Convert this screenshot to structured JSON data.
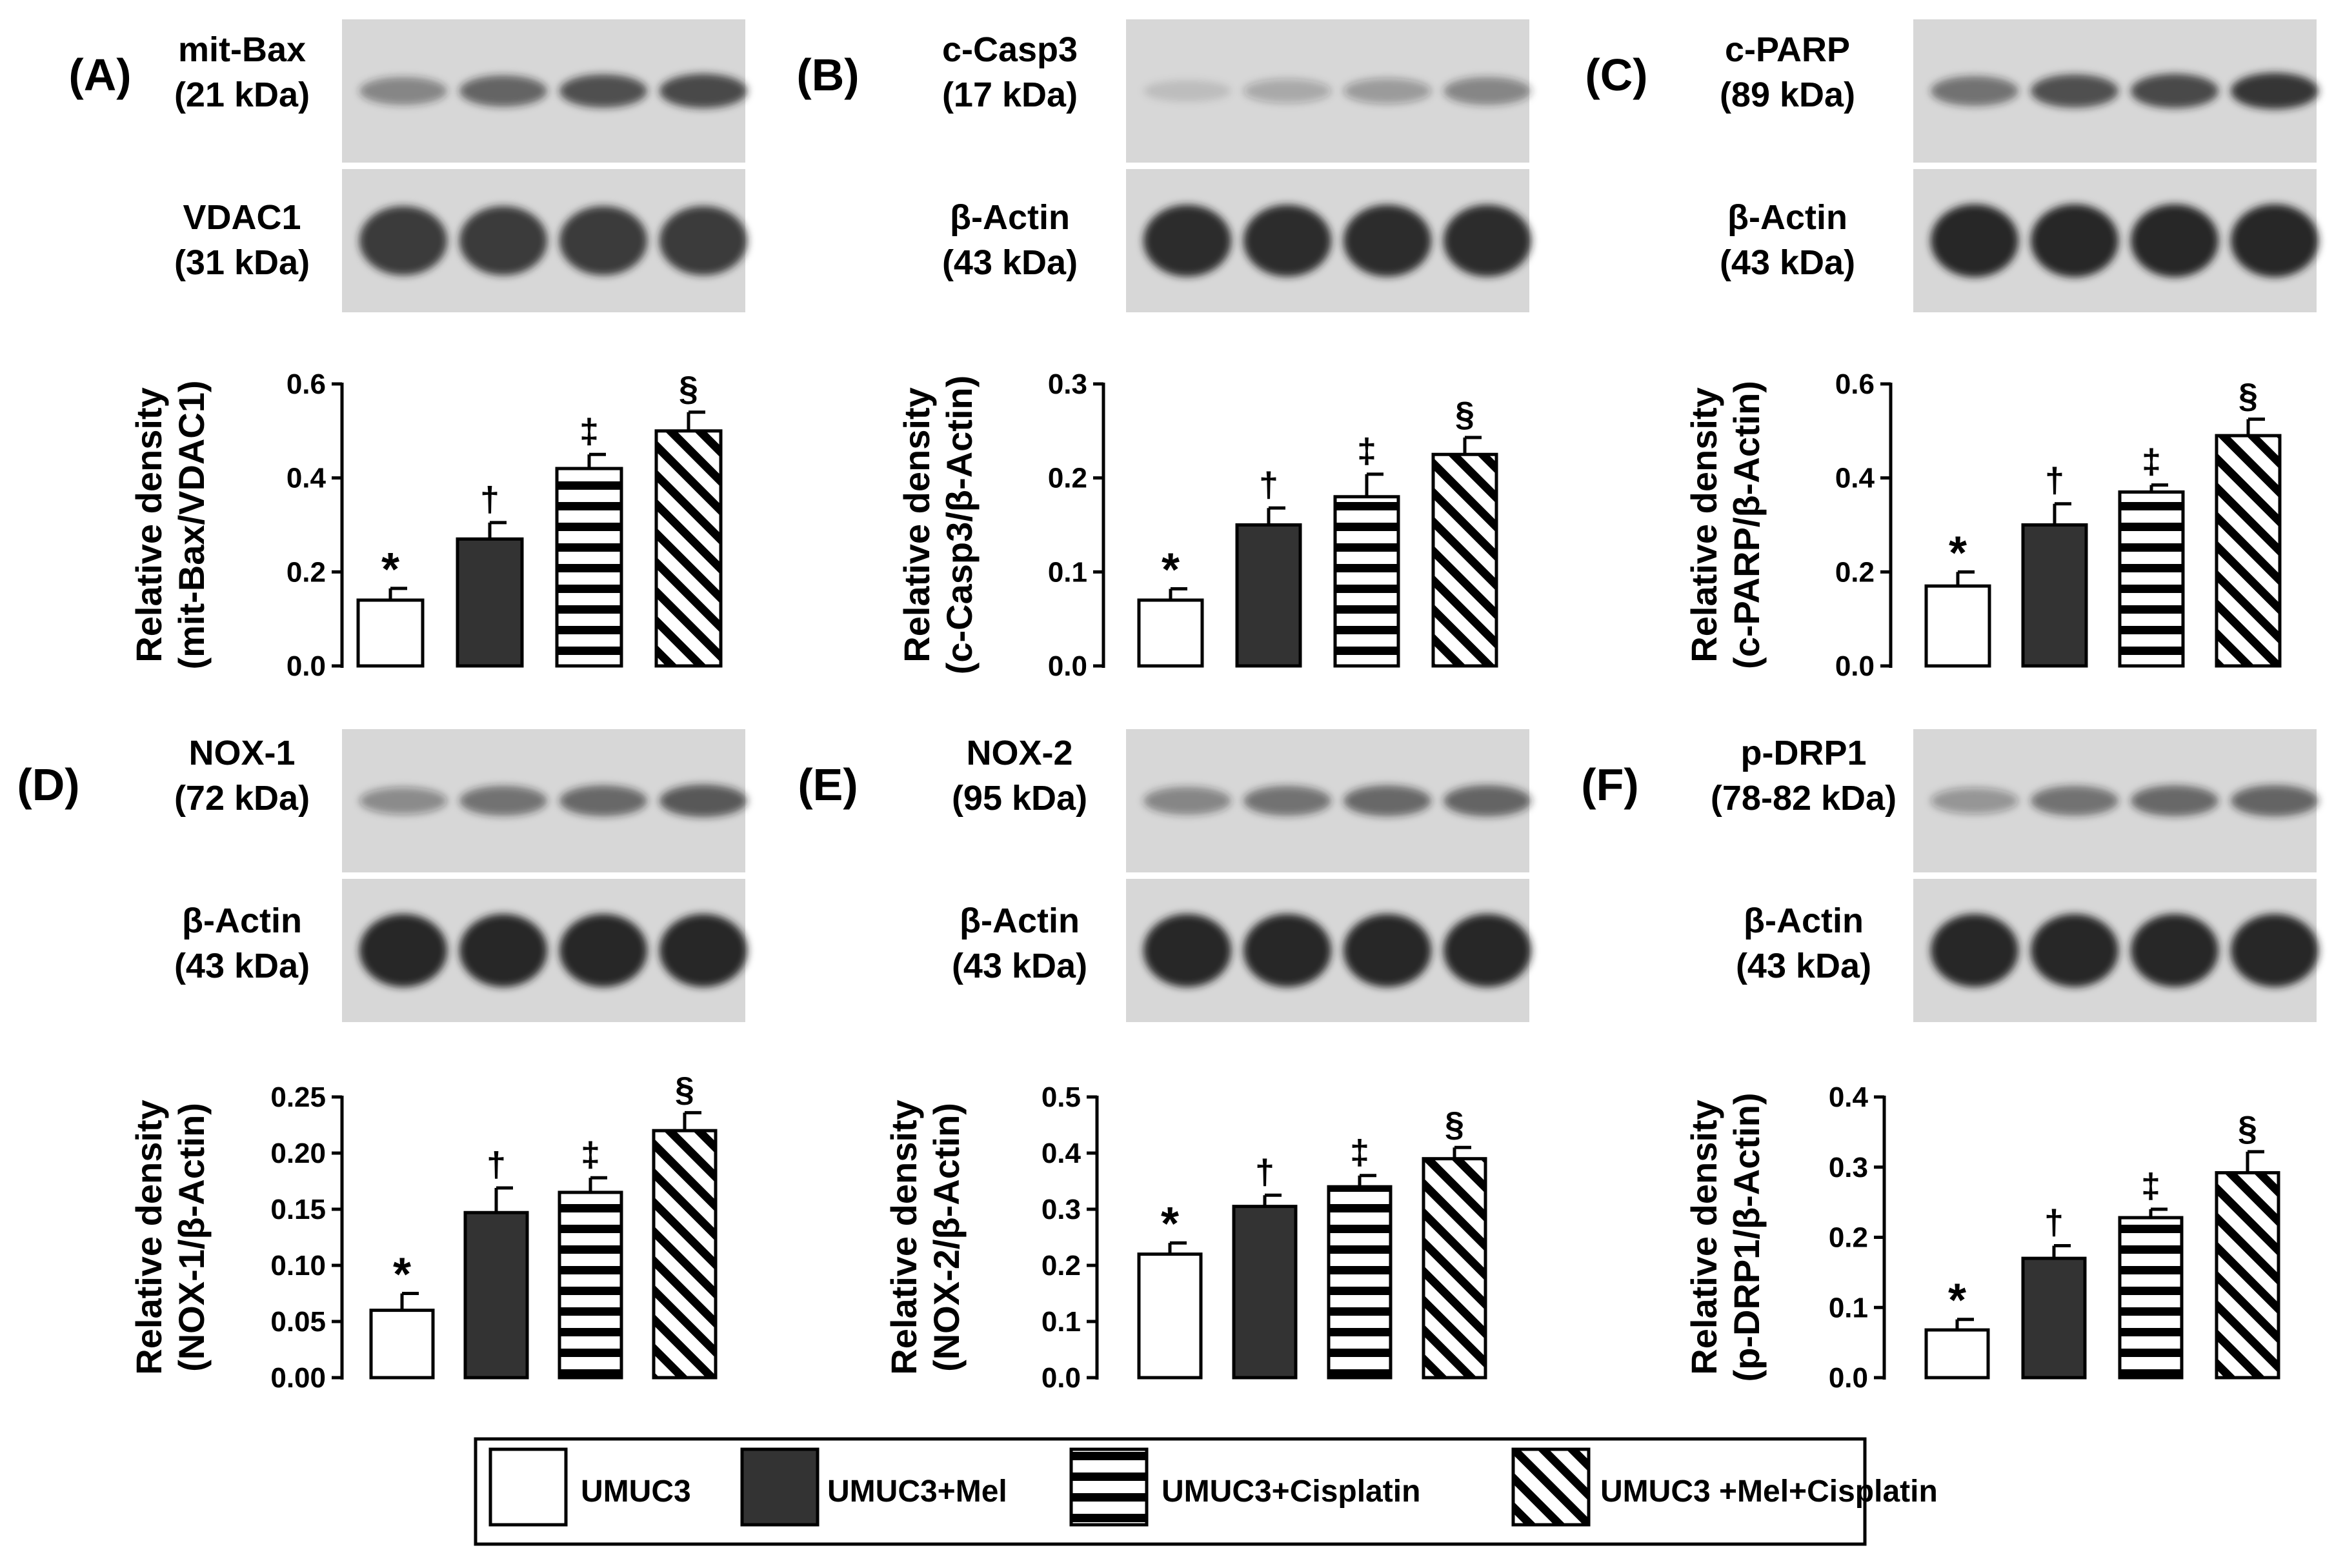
{
  "legend": [
    {
      "label": "UMUC3",
      "pattern": "white"
    },
    {
      "label": "UMUC3+Mel",
      "pattern": "black"
    },
    {
      "label": "UMUC3+Cisplatin",
      "pattern": "hstripe"
    },
    {
      "label": "UMUC3 +Mel+Cisplatin",
      "pattern": "diag"
    }
  ],
  "colors": {
    "bar_fill_dark": "#333333",
    "stroke": "#000000",
    "blot_background": "#d7d7d7",
    "band": "#1e1e1e"
  },
  "panels": [
    {
      "letter": "(A)",
      "target": [
        "mit-Bax",
        "(21 kDa)"
      ],
      "control": [
        "VDAC1",
        "(31 kDa)"
      ],
      "band_intensity": [
        0.45,
        0.62,
        0.72,
        0.78
      ],
      "control_intensity": [
        0.85,
        0.85,
        0.85,
        0.85
      ]
    },
    {
      "letter": "(B)",
      "target": [
        "c-Casp3",
        "(17 kDa)"
      ],
      "control": [
        "β-Actin",
        "(43 kDa)"
      ],
      "band_intensity": [
        0.12,
        0.25,
        0.32,
        0.45
      ],
      "control_intensity": [
        0.92,
        0.92,
        0.92,
        0.92
      ]
    },
    {
      "letter": "(C)",
      "target": [
        "c-PARP",
        "(89 kDa)"
      ],
      "control": [
        "β-Actin",
        "(43 kDa)"
      ],
      "band_intensity": [
        0.55,
        0.72,
        0.78,
        0.88
      ],
      "control_intensity": [
        0.95,
        0.95,
        0.95,
        0.95
      ]
    },
    {
      "letter": "(D)",
      "target": [
        "NOX-1",
        "(72 kDa)"
      ],
      "control": [
        "β-Actin",
        "(43 kDa)"
      ],
      "band_intensity": [
        0.4,
        0.55,
        0.6,
        0.68
      ],
      "control_intensity": [
        0.95,
        0.95,
        0.95,
        0.95
      ]
    },
    {
      "letter": "(E)",
      "target": [
        "NOX-2",
        "(95 kDa)"
      ],
      "control": [
        "β-Actin",
        "(43 kDa)"
      ],
      "band_intensity": [
        0.45,
        0.55,
        0.6,
        0.62
      ],
      "control_intensity": [
        0.95,
        0.95,
        0.95,
        0.95
      ]
    },
    {
      "letter": "(F)",
      "target": [
        "p-DRP1",
        "(78-82 kDa)"
      ],
      "control": [
        "β-Actin",
        "(43 kDa)"
      ],
      "band_intensity": [
        0.35,
        0.55,
        0.6,
        0.62
      ],
      "control_intensity": [
        0.95,
        0.95,
        0.95,
        0.95
      ]
    }
  ],
  "chart_data": [
    {
      "type": "bar",
      "panel": "(A)",
      "ylabel": [
        "Relative density",
        "(mit-Bax/VDAC1)"
      ],
      "categories": [
        "UMUC3",
        "UMUC3+Mel",
        "UMUC3+Cisplatin",
        "UMUC3 +Mel+Cisplatin"
      ],
      "values": [
        0.14,
        0.27,
        0.42,
        0.5
      ],
      "errors": [
        0.025,
        0.035,
        0.03,
        0.04
      ],
      "significance": [
        "*",
        "†",
        "‡",
        "§"
      ],
      "ylim": [
        0,
        0.6
      ],
      "yticks": [
        "0.0",
        "0.2",
        "0.4",
        "0.6"
      ]
    },
    {
      "type": "bar",
      "panel": "(B)",
      "ylabel": [
        "Relative density",
        "(c-Casp3/β-Actin)"
      ],
      "categories": [
        "UMUC3",
        "UMUC3+Mel",
        "UMUC3+Cisplatin",
        "UMUC3 +Mel+Cisplatin"
      ],
      "values": [
        0.07,
        0.15,
        0.18,
        0.225
      ],
      "errors": [
        0.012,
        0.018,
        0.024,
        0.018
      ],
      "significance": [
        "*",
        "†",
        "‡",
        "§"
      ],
      "ylim": [
        0,
        0.3
      ],
      "yticks": [
        "0.0",
        "0.1",
        "0.2",
        "0.3"
      ]
    },
    {
      "type": "bar",
      "panel": "(C)",
      "ylabel": [
        "Relative density",
        "(c-PARP/β-Actin)"
      ],
      "categories": [
        "UMUC3",
        "UMUC3+Mel",
        "UMUC3+Cisplatin",
        "UMUC3 +Mel+Cisplatin"
      ],
      "values": [
        0.17,
        0.3,
        0.37,
        0.49
      ],
      "errors": [
        0.03,
        0.045,
        0.015,
        0.035
      ],
      "significance": [
        "*",
        "†",
        "‡",
        "§"
      ],
      "ylim": [
        0,
        0.6
      ],
      "yticks": [
        "0.0",
        "0.2",
        "0.4",
        "0.6"
      ]
    },
    {
      "type": "bar",
      "panel": "(D)",
      "ylabel": [
        "Relative density",
        "(NOX-1/β-Actin)"
      ],
      "categories": [
        "UMUC3",
        "UMUC3+Mel",
        "UMUC3+Cisplatin",
        "UMUC3 +Mel+Cisplatin"
      ],
      "values": [
        0.06,
        0.147,
        0.165,
        0.22
      ],
      "errors": [
        0.015,
        0.022,
        0.013,
        0.016
      ],
      "significance": [
        "*",
        "†",
        "‡",
        "§"
      ],
      "ylim": [
        0,
        0.25
      ],
      "yticks": [
        "0.00",
        "0.05",
        "0.10",
        "0.15",
        "0.20",
        "0.25"
      ]
    },
    {
      "type": "bar",
      "panel": "(E)",
      "ylabel": [
        "Relative density",
        "(NOX-2/β-Actin)"
      ],
      "categories": [
        "UMUC3",
        "UMUC3+Mel",
        "UMUC3+Cisplatin",
        "UMUC3 +Mel+Cisplatin"
      ],
      "values": [
        0.22,
        0.305,
        0.34,
        0.39
      ],
      "errors": [
        0.02,
        0.02,
        0.02,
        0.02
      ],
      "significance": [
        "*",
        "†",
        "‡",
        "§"
      ],
      "ylim": [
        0,
        0.5
      ],
      "yticks": [
        "0.0",
        "0.1",
        "0.2",
        "0.3",
        "0.4",
        "0.5"
      ]
    },
    {
      "type": "bar",
      "panel": "(F)",
      "ylabel": [
        "Relative density",
        "(p-DRP1/β-Actin)"
      ],
      "categories": [
        "UMUC3",
        "UMUC3+Mel",
        "UMUC3+Cisplatin",
        "UMUC3 +Mel+Cisplatin"
      ],
      "values": [
        0.068,
        0.17,
        0.228,
        0.292
      ],
      "errors": [
        0.015,
        0.018,
        0.012,
        0.03
      ],
      "significance": [
        "*",
        "†",
        "‡",
        "§"
      ],
      "ylim": [
        0,
        0.4
      ],
      "yticks": [
        "0.0",
        "0.1",
        "0.2",
        "0.3",
        "0.4"
      ]
    }
  ]
}
